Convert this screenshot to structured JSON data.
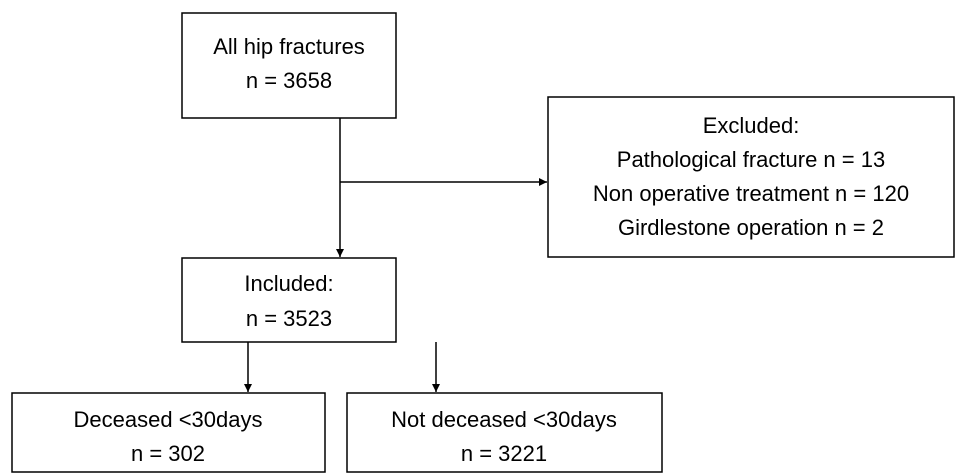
{
  "nodes": [
    {
      "lines": [
        "All hip fractures",
        "n = 3658"
      ]
    },
    {
      "lines": [
        "Excluded:",
        "Pathological fracture n = 13",
        "Non operative treatment n = 120",
        "Girdlestone operation n = 2"
      ]
    },
    {
      "lines": [
        "Included:",
        "n = 3523"
      ]
    },
    {
      "lines": [
        "Deceased <30days",
        "n = 302"
      ]
    },
    {
      "lines": [
        "Not deceased <30days",
        "n = 3221"
      ]
    }
  ]
}
